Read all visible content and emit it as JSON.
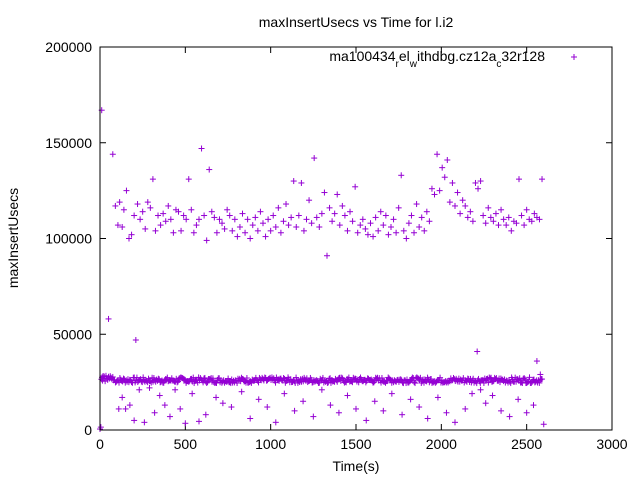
{
  "chart_data": {
    "type": "scatter",
    "title": "maxInsertUsecs vs Time for l.i2",
    "xlabel": "Time(s)",
    "ylabel": "maxInsertUsecs",
    "xlim": [
      0,
      3000
    ],
    "ylim": [
      0,
      200000
    ],
    "xticks": [
      0,
      500,
      1000,
      1500,
      2000,
      2500,
      3000
    ],
    "yticks": [
      0,
      50000,
      100000,
      150000,
      200000
    ],
    "x_tick_labels": [
      "0",
      "500",
      "1000",
      "1500",
      "2000",
      "2500",
      "3000"
    ],
    "y_tick_labels": [
      "0",
      "50000",
      "100000",
      "150000",
      "200000"
    ],
    "marker": "+",
    "color": "#9400d3",
    "legend": {
      "placement": "top-right",
      "label_parts": [
        {
          "text": "ma100434",
          "sub": false
        },
        {
          "text": "r",
          "sub": true
        },
        {
          "text": "el",
          "sub": false
        },
        {
          "text": "w",
          "sub": true
        },
        {
          "text": "ithdbg.cz12a",
          "sub": false
        },
        {
          "text": "c",
          "sub": true
        },
        {
          "text": "32r128",
          "sub": false
        }
      ]
    },
    "series": [
      {
        "name": "ma100434_rel_withdbg.cz12a_c32r128",
        "bands": [
          {
            "x_start": 80,
            "x_end": 2590,
            "count": 480,
            "y_min": 24500,
            "y_max": 27500
          }
        ],
        "points": [
          [
            0,
            500
          ],
          [
            5,
            1500
          ],
          [
            8,
            26500
          ],
          [
            12,
            27500
          ],
          [
            15,
            25800
          ],
          [
            18,
            28200
          ],
          [
            22,
            26800
          ],
          [
            25,
            27900
          ],
          [
            30,
            25500
          ],
          [
            35,
            28300
          ],
          [
            40,
            27000
          ],
          [
            45,
            26200
          ],
          [
            50,
            27800
          ],
          [
            55,
            26900
          ],
          [
            60,
            28100
          ],
          [
            65,
            27300
          ],
          [
            70,
            26500
          ],
          [
            75,
            27700
          ],
          [
            10,
            167000
          ],
          [
            50,
            58000
          ],
          [
            75,
            144000
          ],
          [
            90,
            117000
          ],
          [
            105,
            107000
          ],
          [
            115,
            119000
          ],
          [
            130,
            106000
          ],
          [
            140,
            115000
          ],
          [
            155,
            125000
          ],
          [
            170,
            100000
          ],
          [
            185,
            102000
          ],
          [
            200,
            112000
          ],
          [
            210,
            47000
          ],
          [
            220,
            118000
          ],
          [
            235,
            110000
          ],
          [
            250,
            114000
          ],
          [
            265,
            105000
          ],
          [
            280,
            119000
          ],
          [
            295,
            116000
          ],
          [
            310,
            131000
          ],
          [
            325,
            104000
          ],
          [
            340,
            112000
          ],
          [
            355,
            107000
          ],
          [
            370,
            113000
          ],
          [
            385,
            109000
          ],
          [
            400,
            117000
          ],
          [
            415,
            110000
          ],
          [
            430,
            103000
          ],
          [
            445,
            115000
          ],
          [
            460,
            114000
          ],
          [
            475,
            104000
          ],
          [
            490,
            112000
          ],
          [
            505,
            110000
          ],
          [
            520,
            131000
          ],
          [
            535,
            115000
          ],
          [
            550,
            103000
          ],
          [
            565,
            107000
          ],
          [
            580,
            110000
          ],
          [
            595,
            147000
          ],
          [
            610,
            112000
          ],
          [
            625,
            99000
          ],
          [
            640,
            136000
          ],
          [
            655,
            114000
          ],
          [
            670,
            111000
          ],
          [
            685,
            103000
          ],
          [
            700,
            110000
          ],
          [
            715,
            108000
          ],
          [
            730,
            105000
          ],
          [
            745,
            115000
          ],
          [
            760,
            112000
          ],
          [
            775,
            104000
          ],
          [
            790,
            110000
          ],
          [
            805,
            101000
          ],
          [
            820,
            106000
          ],
          [
            835,
            113000
          ],
          [
            850,
            103000
          ],
          [
            865,
            110000
          ],
          [
            880,
            100000
          ],
          [
            895,
            107000
          ],
          [
            910,
            111000
          ],
          [
            925,
            104000
          ],
          [
            940,
            114000
          ],
          [
            955,
            108000
          ],
          [
            970,
            101000
          ],
          [
            985,
            110000
          ],
          [
            1000,
            104000
          ],
          [
            1015,
            112000
          ],
          [
            1030,
            106000
          ],
          [
            1045,
            116000
          ],
          [
            1060,
            103000
          ],
          [
            1075,
            109000
          ],
          [
            1090,
            118000
          ],
          [
            1105,
            107000
          ],
          [
            1120,
            111000
          ],
          [
            1135,
            130000
          ],
          [
            1150,
            106000
          ],
          [
            1165,
            112000
          ],
          [
            1180,
            129000
          ],
          [
            1195,
            104000
          ],
          [
            1210,
            110000
          ],
          [
            1225,
            120000
          ],
          [
            1240,
            108000
          ],
          [
            1255,
            142000
          ],
          [
            1270,
            111000
          ],
          [
            1285,
            106000
          ],
          [
            1300,
            113000
          ],
          [
            1315,
            124000
          ],
          [
            1330,
            91000
          ],
          [
            1345,
            116000
          ],
          [
            1360,
            109000
          ],
          [
            1375,
            113000
          ],
          [
            1390,
            123000
          ],
          [
            1405,
            107000
          ],
          [
            1420,
            117000
          ],
          [
            1435,
            112000
          ],
          [
            1450,
            104000
          ],
          [
            1465,
            114000
          ],
          [
            1480,
            109000
          ],
          [
            1495,
            127000
          ],
          [
            1510,
            103000
          ],
          [
            1525,
            107000
          ],
          [
            1540,
            110000
          ],
          [
            1555,
            105000
          ],
          [
            1570,
            102000
          ],
          [
            1585,
            108000
          ],
          [
            1600,
            101000
          ],
          [
            1615,
            111000
          ],
          [
            1630,
            104000
          ],
          [
            1645,
            114000
          ],
          [
            1660,
            107000
          ],
          [
            1675,
            112000
          ],
          [
            1690,
            102000
          ],
          [
            1705,
            106000
          ],
          [
            1720,
            110000
          ],
          [
            1735,
            103000
          ],
          [
            1750,
            116000
          ],
          [
            1765,
            133000
          ],
          [
            1780,
            104000
          ],
          [
            1795,
            100000
          ],
          [
            1810,
            108000
          ],
          [
            1825,
            112000
          ],
          [
            1840,
            103000
          ],
          [
            1855,
            118000
          ],
          [
            1870,
            106000
          ],
          [
            1885,
            111000
          ],
          [
            1900,
            104000
          ],
          [
            1915,
            114000
          ],
          [
            1930,
            109000
          ],
          [
            1945,
            126000
          ],
          [
            1960,
            123000
          ],
          [
            1975,
            144000
          ],
          [
            1990,
            125000
          ],
          [
            2005,
            137000
          ],
          [
            2020,
            132000
          ],
          [
            2035,
            141000
          ],
          [
            2050,
            119000
          ],
          [
            2065,
            129000
          ],
          [
            2080,
            117000
          ],
          [
            2095,
            124000
          ],
          [
            2110,
            113000
          ],
          [
            2125,
            120000
          ],
          [
            2140,
            117000
          ],
          [
            2155,
            111000
          ],
          [
            2170,
            114000
          ],
          [
            2185,
            109000
          ],
          [
            2200,
            129000
          ],
          [
            2215,
            126000
          ],
          [
            2230,
            130000
          ],
          [
            2245,
            112000
          ],
          [
            2260,
            108000
          ],
          [
            2275,
            116000
          ],
          [
            2290,
            111000
          ],
          [
            2305,
            109000
          ],
          [
            2320,
            113000
          ],
          [
            2335,
            107000
          ],
          [
            2350,
            115000
          ],
          [
            2365,
            110000
          ],
          [
            2380,
            107000
          ],
          [
            2395,
            111000
          ],
          [
            2410,
            104000
          ],
          [
            2425,
            109000
          ],
          [
            2440,
            108000
          ],
          [
            2455,
            131000
          ],
          [
            2470,
            112000
          ],
          [
            2485,
            107000
          ],
          [
            2500,
            115000
          ],
          [
            2515,
            110000
          ],
          [
            2530,
            109000
          ],
          [
            2545,
            113000
          ],
          [
            2560,
            111000
          ],
          [
            2575,
            110000
          ],
          [
            2590,
            131000
          ],
          [
            110,
            11000
          ],
          [
            130,
            17000
          ],
          [
            150,
            11000
          ],
          [
            175,
            13000
          ],
          [
            200,
            5000
          ],
          [
            230,
            21000
          ],
          [
            260,
            4000
          ],
          [
            290,
            22000
          ],
          [
            320,
            9000
          ],
          [
            350,
            18000
          ],
          [
            380,
            13000
          ],
          [
            410,
            7000
          ],
          [
            440,
            21000
          ],
          [
            470,
            11000
          ],
          [
            500,
            3500
          ],
          [
            540,
            19000
          ],
          [
            580,
            4500
          ],
          [
            620,
            8000
          ],
          [
            680,
            17000
          ],
          [
            720,
            14000
          ],
          [
            770,
            12000
          ],
          [
            830,
            20000
          ],
          [
            880,
            6000
          ],
          [
            930,
            16000
          ],
          [
            980,
            12000
          ],
          [
            1030,
            4000
          ],
          [
            1080,
            19000
          ],
          [
            1140,
            10000
          ],
          [
            1190,
            15000
          ],
          [
            1250,
            7000
          ],
          [
            1300,
            21000
          ],
          [
            1350,
            13000
          ],
          [
            1400,
            9000
          ],
          [
            1450,
            18000
          ],
          [
            1500,
            11000
          ],
          [
            1560,
            5000
          ],
          [
            1610,
            15000
          ],
          [
            1660,
            10000
          ],
          [
            1710,
            19000
          ],
          [
            1770,
            8000
          ],
          [
            1820,
            16000
          ],
          [
            1870,
            12000
          ],
          [
            1920,
            6000
          ],
          [
            1980,
            17000
          ],
          [
            2030,
            9000
          ],
          [
            2080,
            4000
          ],
          [
            2140,
            11000
          ],
          [
            2180,
            19000
          ],
          [
            2210,
            41000
          ],
          [
            2230,
            21000
          ],
          [
            2260,
            14000
          ],
          [
            2300,
            18000
          ],
          [
            2350,
            10000
          ],
          [
            2400,
            7000
          ],
          [
            2450,
            16000
          ],
          [
            2500,
            9000
          ],
          [
            2540,
            13000
          ],
          [
            2560,
            36000
          ],
          [
            2580,
            29000
          ],
          [
            2600,
            3000
          ]
        ]
      }
    ]
  }
}
